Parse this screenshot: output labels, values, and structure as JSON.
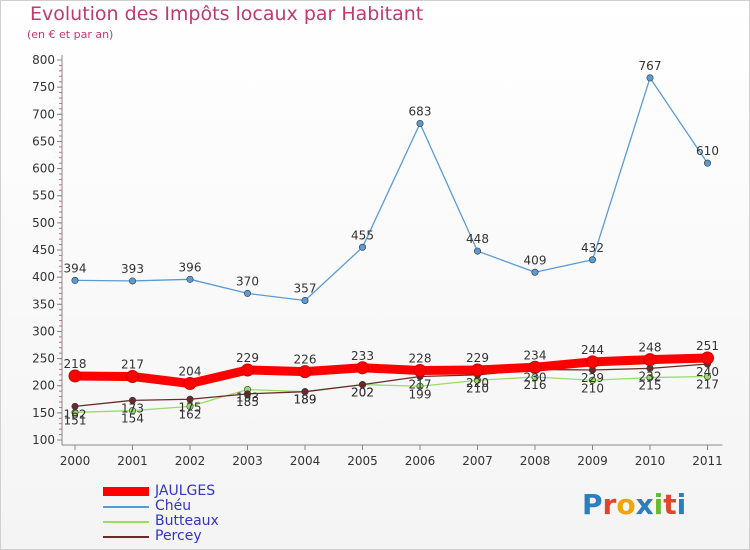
{
  "title": "Evolution des Impôts locaux par Habitant",
  "subtitle": "(en € et par an)",
  "logo": {
    "text": "Proxiti",
    "colors": [
      "#2a7fc0",
      "#e2442c",
      "#f0a500",
      "#2a7fc0",
      "#6ab934",
      "#e2442c",
      "#2a7fc0"
    ]
  },
  "chart_data": {
    "type": "line",
    "title": "Evolution des Impôts locaux par Habitant",
    "subtitle": "(en € et par an)",
    "x": [
      "2000",
      "2001",
      "2002",
      "2003",
      "2004",
      "2005",
      "2006",
      "2007",
      "2008",
      "2009",
      "2010",
      "2011"
    ],
    "y_ticks": [
      100,
      150,
      200,
      250,
      300,
      350,
      400,
      450,
      500,
      550,
      600,
      650,
      700,
      750,
      800
    ],
    "ylim": [
      100,
      800
    ],
    "grid": false,
    "legend_position": "bottom-left",
    "series": [
      {
        "name": "JAULGES",
        "color": "#ff0000",
        "style": "thick",
        "labels": true,
        "values": [
          218,
          217,
          204,
          229,
          226,
          233,
          228,
          229,
          234,
          244,
          248,
          251
        ]
      },
      {
        "name": "Chéu",
        "color": "#5b9bd5",
        "style": "thin",
        "labels": true,
        "values": [
          394,
          393,
          396,
          370,
          357,
          455,
          683,
          448,
          409,
          432,
          767,
          610
        ]
      },
      {
        "name": "Butteaux",
        "color": "#99dd66",
        "style": "thin",
        "labels": true,
        "values": [
          151,
          154,
          162,
          193,
          189,
          202,
          199,
          210,
          216,
          210,
          215,
          217
        ]
      },
      {
        "name": "Percey",
        "color": "#6b2a2a",
        "style": "thin",
        "labels": true,
        "values": [
          162,
          173,
          175,
          185,
          189,
          202,
          217,
          220,
          230,
          229,
          232,
          240
        ]
      }
    ]
  }
}
